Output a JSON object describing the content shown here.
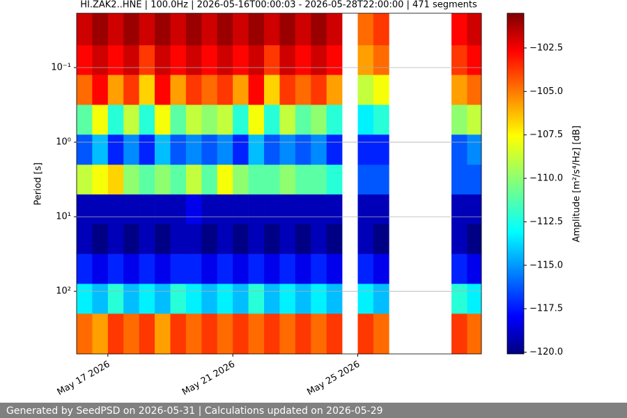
{
  "chart_data": {
    "type": "heatmap",
    "title": "HI.ZAK2..HNE | 100.0Hz | 2026-05-16T00:00:03 - 2026-05-28T22:00:00 | 471 segments",
    "y_label": "Period [s]",
    "colorbar_label": "Amplitude [m²/s⁴/Hz] [dB]",
    "colormap": "jet",
    "log_y": true,
    "y_inverted": true,
    "grid": true,
    "xlim": [
      "2026-05-16T00:00",
      "2026-05-28T23:00"
    ],
    "xticks": [
      {
        "value": "2026-05-17T00:00",
        "label": "May 17 2026"
      },
      {
        "value": "2026-05-21T00:00",
        "label": "May 21 2026"
      },
      {
        "value": "2026-05-25T00:00",
        "label": "May 25 2026"
      }
    ],
    "ylim": [
      0.0187,
      690
    ],
    "yticks": [
      {
        "value": 0.1,
        "label": "10⁻¹"
      },
      {
        "value": 1,
        "label": "10⁰"
      },
      {
        "value": 10,
        "label": "10¹"
      },
      {
        "value": 100,
        "label": "10²"
      }
    ],
    "clim": [
      -120.1,
      -100.5
    ],
    "cticks": [
      {
        "value": -120,
        "label": "−120.0"
      },
      {
        "value": -117.5,
        "label": "−117.5"
      },
      {
        "value": -115,
        "label": "−115.0"
      },
      {
        "value": -112.5,
        "label": "−112.5"
      },
      {
        "value": -110,
        "label": "−110.0"
      },
      {
        "value": -107.5,
        "label": "−107.5"
      },
      {
        "value": -105,
        "label": "−105.0"
      },
      {
        "value": -102.5,
        "label": "−102.5"
      }
    ],
    "x": [
      "2026-05-16T00:00",
      "2026-05-16T12:00",
      "2026-05-17T00:00",
      "2026-05-17T12:00",
      "2026-05-18T00:00",
      "2026-05-18T12:00",
      "2026-05-19T00:00",
      "2026-05-19T12:00",
      "2026-05-20T00:00",
      "2026-05-20T12:00",
      "2026-05-21T00:00",
      "2026-05-21T12:00",
      "2026-05-22T00:00",
      "2026-05-22T12:00",
      "2026-05-23T00:00",
      "2026-05-23T12:00",
      "2026-05-24T00:00",
      "2026-05-24T12:00",
      "2026-05-25T00:00",
      "2026-05-25T12:00",
      "2026-05-26T00:00",
      "2026-05-26T12:00",
      "2026-05-27T00:00",
      "2026-05-27T12:00",
      "2026-05-28T00:00",
      "2026-05-28T12:00"
    ],
    "y": [
      0.032,
      0.079,
      0.2,
      0.5,
      1.26,
      3.2,
      7.9,
      20,
      50,
      126,
      316
    ],
    "values": [
      [
        -102,
        -103,
        -105,
        -111,
        -116,
        -109,
        -119,
        -119,
        -117,
        -113,
        -105
      ],
      [
        -101,
        -102,
        -103,
        -108,
        -114,
        -108,
        -119,
        -120,
        -118,
        -114,
        -106
      ],
      [
        -102,
        -103,
        -106,
        -112,
        -117,
        -107,
        -119,
        -119,
        -117,
        -112,
        -104
      ],
      [
        -101,
        -102,
        -104,
        -109,
        -115,
        -110,
        -119,
        -120,
        -118,
        -114,
        -105
      ],
      [
        -102,
        -104,
        -107,
        -112,
        -117,
        -111,
        -119,
        -119,
        -117,
        -113,
        -104
      ],
      [
        -101,
        -102,
        -103,
        -108,
        -114,
        -110,
        -119,
        -120,
        -118,
        -114,
        -106
      ],
      [
        -102,
        -103,
        -106,
        -111,
        -116,
        -111,
        -119,
        -119,
        -117,
        -112,
        -104
      ],
      [
        -101,
        -102,
        -104,
        -109,
        -115,
        -109,
        -118,
        -119,
        -117,
        -113,
        -105
      ],
      [
        -102,
        -103,
        -105,
        -110,
        -116,
        -111,
        -119,
        -120,
        -118,
        -114,
        -104
      ],
      [
        -101,
        -102,
        -104,
        -109,
        -115,
        -108,
        -119,
        -119,
        -117,
        -113,
        -105
      ],
      [
        -102,
        -103,
        -106,
        -112,
        -117,
        -110,
        -119,
        -120,
        -118,
        -114,
        -104
      ],
      [
        -101,
        -102,
        -103,
        -108,
        -114,
        -111,
        -119,
        -119,
        -117,
        -112,
        -105
      ],
      [
        -102,
        -104,
        -107,
        -112,
        -116,
        -111,
        -119,
        -120,
        -118,
        -114,
        -104
      ],
      [
        -101,
        -102,
        -104,
        -109,
        -115,
        -110,
        -119,
        -119,
        -117,
        -113,
        -105
      ],
      [
        -102,
        -103,
        -105,
        -111,
        -116,
        -111,
        -119,
        -120,
        -118,
        -114,
        -104
      ],
      [
        -101,
        -102,
        -104,
        -110,
        -115,
        -111,
        -119,
        -119,
        -117,
        -113,
        -105
      ],
      [
        -102,
        -103,
        -106,
        -112,
        -117,
        -112,
        -119,
        -120,
        -118,
        -114,
        -104
      ],
      null,
      [
        -105,
        -106,
        -109,
        -113,
        -117,
        -116,
        -119,
        -119,
        -117,
        -113,
        -104
      ],
      [
        -104,
        -105,
        -108,
        -112,
        -117,
        -116,
        -119,
        -120,
        -118,
        -114,
        -105
      ],
      null,
      null,
      null,
      null,
      [
        -103,
        -104,
        -106,
        -110,
        -116,
        -116,
        -119,
        -119,
        -117,
        -112,
        -104
      ],
      [
        -102,
        -103,
        -105,
        -109,
        -115,
        -116,
        -119,
        -120,
        -118,
        -113,
        -105
      ]
    ],
    "footer": "Generated by SeedPSD on 2026-05-31 | Calculations updated on 2026-05-29"
  }
}
